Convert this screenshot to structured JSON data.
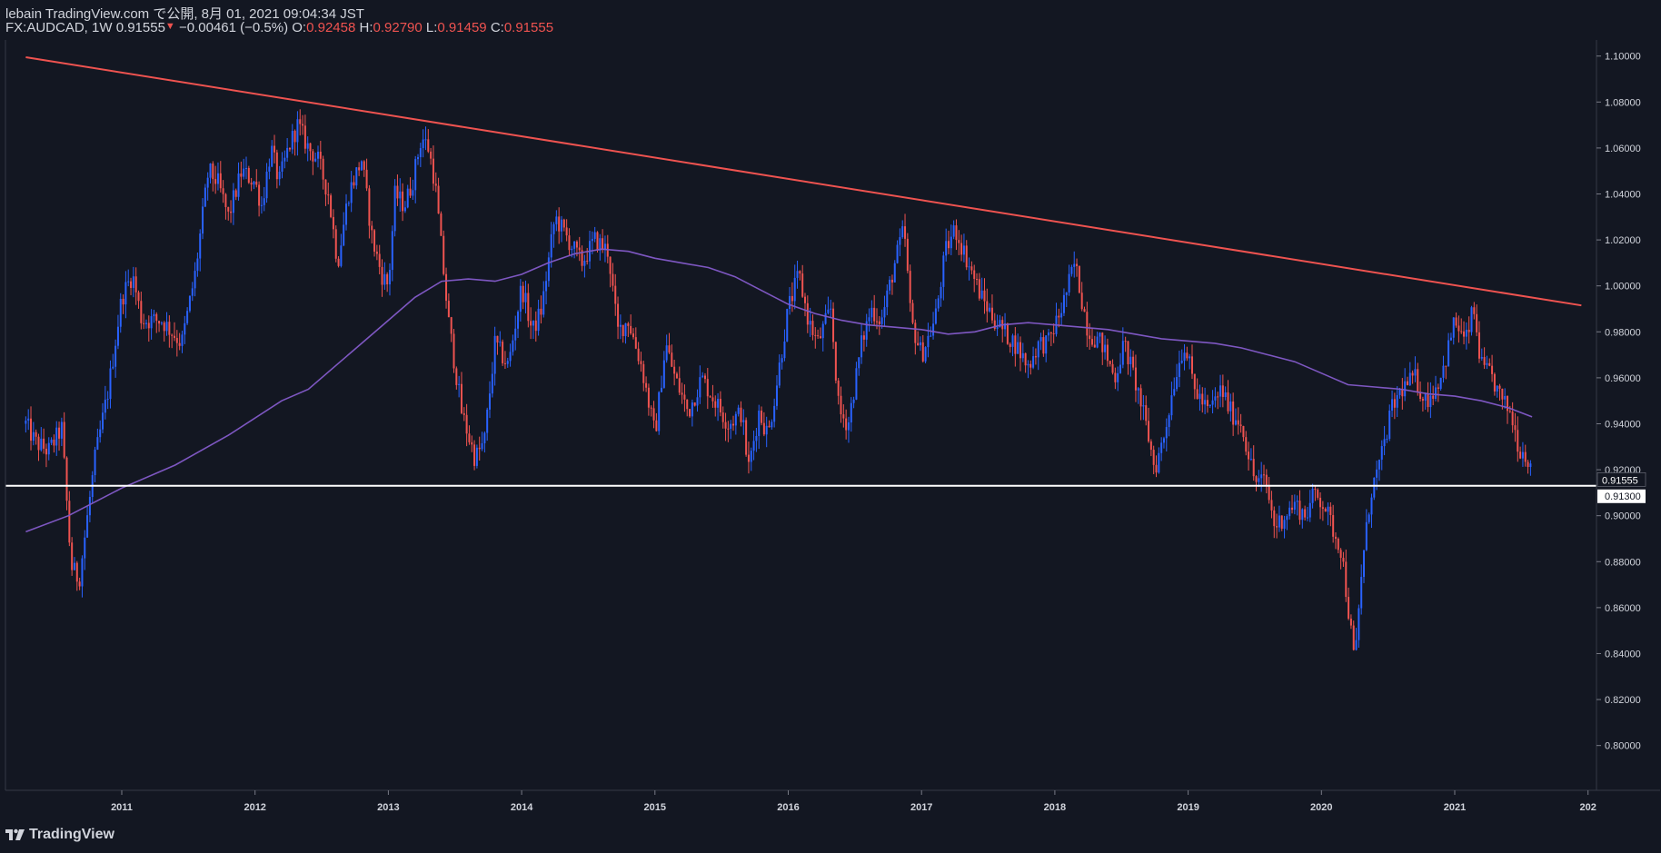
{
  "header": {
    "published_by": "lebain TradingView.com で公開, 8月 01, 2021 09:04:34 JST",
    "symbol": "FX:AUDCAD, 1W",
    "last": "0.91555",
    "change": "−0.00461 (−0.5%)",
    "o_label": "O:",
    "o_value": "0.92458",
    "h_label": "H:",
    "h_value": "0.92790",
    "l_label": "L:",
    "l_value": "0.91459",
    "c_label": "C:",
    "c_value": "0.91555"
  },
  "footer": {
    "logo_text": "TradingView"
  },
  "colors": {
    "background": "#131722",
    "up": "#2962ff",
    "down": "#ef5350",
    "ma": "#7e57c2",
    "trendline": "#ef5350",
    "support": "#ffffff"
  },
  "chart_data": {
    "type": "candlestick",
    "symbol": "FX:AUDCAD",
    "timeframe": "1W",
    "x_ticks": [
      "2011",
      "2012",
      "2013",
      "2014",
      "2015",
      "2016",
      "2017",
      "2018",
      "2019",
      "2020",
      "2021",
      "202"
    ],
    "y_ticks": [
      "1.10000",
      "1.08000",
      "1.06000",
      "1.04000",
      "1.02000",
      "1.00000",
      "0.98000",
      "0.96000",
      "0.94000",
      "0.92000",
      "0.90000",
      "0.88000",
      "0.86000",
      "0.84000",
      "0.82000",
      "0.80000"
    ],
    "ylim": [
      0.7805,
      1.107
    ],
    "price_labels": {
      "last": "0.91555",
      "support": "0.91300"
    },
    "support_level": 0.913,
    "trendline": [
      [
        2010.28,
        1.0995
      ],
      [
        2021.95,
        0.9915
      ]
    ],
    "price_path": [
      [
        2010.28,
        0.94
      ],
      [
        2010.35,
        0.932
      ],
      [
        2010.45,
        0.928
      ],
      [
        2010.55,
        0.938
      ],
      [
        2010.62,
        0.878
      ],
      [
        2010.68,
        0.872
      ],
      [
        2010.8,
        0.925
      ],
      [
        2010.9,
        0.955
      ],
      [
        2011.0,
        0.995
      ],
      [
        2011.08,
        1.005
      ],
      [
        2011.15,
        0.985
      ],
      [
        2011.3,
        0.985
      ],
      [
        2011.45,
        0.975
      ],
      [
        2011.55,
        1.005
      ],
      [
        2011.65,
        1.05
      ],
      [
        2011.72,
        1.045
      ],
      [
        2011.8,
        1.03
      ],
      [
        2011.9,
        1.05
      ],
      [
        2012.0,
        1.045
      ],
      [
        2012.05,
        1.035
      ],
      [
        2012.12,
        1.06
      ],
      [
        2012.18,
        1.045
      ],
      [
        2012.25,
        1.06
      ],
      [
        2012.32,
        1.07
      ],
      [
        2012.4,
        1.06
      ],
      [
        2012.47,
        1.055
      ],
      [
        2012.55,
        1.04
      ],
      [
        2012.62,
        1.01
      ],
      [
        2012.7,
        1.04
      ],
      [
        2012.8,
        1.055
      ],
      [
        2012.88,
        1.02
      ],
      [
        2012.95,
        1.005
      ],
      [
        2013.0,
        1.0
      ],
      [
        2013.05,
        1.04
      ],
      [
        2013.12,
        1.035
      ],
      [
        2013.18,
        1.045
      ],
      [
        2013.25,
        1.065
      ],
      [
        2013.3,
        1.06
      ],
      [
        2013.35,
        1.045
      ],
      [
        2013.45,
        0.985
      ],
      [
        2013.55,
        0.945
      ],
      [
        2013.65,
        0.925
      ],
      [
        2013.72,
        0.932
      ],
      [
        2013.8,
        0.975
      ],
      [
        2013.9,
        0.965
      ],
      [
        2014.0,
        1.0
      ],
      [
        2014.08,
        0.98
      ],
      [
        2014.15,
        0.99
      ],
      [
        2014.25,
        1.03
      ],
      [
        2014.35,
        1.02
      ],
      [
        2014.45,
        1.01
      ],
      [
        2014.55,
        1.02
      ],
      [
        2014.65,
        1.015
      ],
      [
        2014.72,
        0.98
      ],
      [
        2014.8,
        0.985
      ],
      [
        2014.9,
        0.965
      ],
      [
        2015.0,
        0.935
      ],
      [
        2015.08,
        0.975
      ],
      [
        2015.15,
        0.96
      ],
      [
        2015.25,
        0.945
      ],
      [
        2015.35,
        0.96
      ],
      [
        2015.45,
        0.95
      ],
      [
        2015.55,
        0.94
      ],
      [
        2015.65,
        0.945
      ],
      [
        2015.7,
        0.92
      ],
      [
        2015.78,
        0.945
      ],
      [
        2015.85,
        0.935
      ],
      [
        2015.92,
        0.96
      ],
      [
        2016.0,
        0.99
      ],
      [
        2016.08,
        1.005
      ],
      [
        2016.15,
        0.985
      ],
      [
        2016.22,
        0.975
      ],
      [
        2016.32,
        0.99
      ],
      [
        2016.38,
        0.945
      ],
      [
        2016.45,
        0.94
      ],
      [
        2016.55,
        0.975
      ],
      [
        2016.62,
        0.99
      ],
      [
        2016.7,
        0.985
      ],
      [
        2016.8,
        1.01
      ],
      [
        2016.87,
        1.025
      ],
      [
        2016.92,
        0.985
      ],
      [
        2017.0,
        0.97
      ],
      [
        2017.1,
        0.985
      ],
      [
        2017.18,
        1.015
      ],
      [
        2017.25,
        1.025
      ],
      [
        2017.35,
        1.01
      ],
      [
        2017.45,
        0.995
      ],
      [
        2017.55,
        0.985
      ],
      [
        2017.62,
        0.98
      ],
      [
        2017.7,
        0.975
      ],
      [
        2017.8,
        0.965
      ],
      [
        2017.88,
        0.975
      ],
      [
        2017.95,
        0.975
      ],
      [
        2018.05,
        0.99
      ],
      [
        2018.15,
        1.01
      ],
      [
        2018.25,
        0.98
      ],
      [
        2018.35,
        0.975
      ],
      [
        2018.45,
        0.96
      ],
      [
        2018.52,
        0.975
      ],
      [
        2018.62,
        0.955
      ],
      [
        2018.7,
        0.935
      ],
      [
        2018.75,
        0.92
      ],
      [
        2018.82,
        0.935
      ],
      [
        2018.9,
        0.96
      ],
      [
        2018.97,
        0.975
      ],
      [
        2019.05,
        0.955
      ],
      [
        2019.15,
        0.945
      ],
      [
        2019.25,
        0.955
      ],
      [
        2019.32,
        0.945
      ],
      [
        2019.4,
        0.94
      ],
      [
        2019.5,
        0.915
      ],
      [
        2019.58,
        0.915
      ],
      [
        2019.65,
        0.895
      ],
      [
        2019.72,
        0.9
      ],
      [
        2019.8,
        0.905
      ],
      [
        2019.88,
        0.9
      ],
      [
        2019.95,
        0.91
      ],
      [
        2020.02,
        0.905
      ],
      [
        2020.08,
        0.895
      ],
      [
        2020.15,
        0.885
      ],
      [
        2020.2,
        0.86
      ],
      [
        2020.25,
        0.835
      ],
      [
        2020.3,
        0.875
      ],
      [
        2020.37,
        0.91
      ],
      [
        2020.45,
        0.925
      ],
      [
        2020.52,
        0.945
      ],
      [
        2020.6,
        0.955
      ],
      [
        2020.7,
        0.96
      ],
      [
        2020.78,
        0.95
      ],
      [
        2020.85,
        0.955
      ],
      [
        2020.92,
        0.965
      ],
      [
        2021.0,
        0.985
      ],
      [
        2021.08,
        0.975
      ],
      [
        2021.14,
        0.99
      ],
      [
        2021.2,
        0.965
      ],
      [
        2021.28,
        0.96
      ],
      [
        2021.35,
        0.95
      ],
      [
        2021.42,
        0.945
      ],
      [
        2021.48,
        0.93
      ],
      [
        2021.55,
        0.925
      ],
      [
        2021.58,
        0.9156
      ]
    ],
    "moving_average": [
      [
        2010.28,
        0.893
      ],
      [
        2010.6,
        0.9
      ],
      [
        2011.0,
        0.912
      ],
      [
        2011.4,
        0.922
      ],
      [
        2011.8,
        0.935
      ],
      [
        2012.2,
        0.95
      ],
      [
        2012.4,
        0.955
      ],
      [
        2012.6,
        0.965
      ],
      [
        2012.8,
        0.975
      ],
      [
        2013.0,
        0.985
      ],
      [
        2013.2,
        0.995
      ],
      [
        2013.4,
        1.002
      ],
      [
        2013.6,
        1.003
      ],
      [
        2013.8,
        1.002
      ],
      [
        2014.0,
        1.005
      ],
      [
        2014.2,
        1.01
      ],
      [
        2014.4,
        1.014
      ],
      [
        2014.6,
        1.016
      ],
      [
        2014.8,
        1.015
      ],
      [
        2015.0,
        1.012
      ],
      [
        2015.2,
        1.01
      ],
      [
        2015.4,
        1.008
      ],
      [
        2015.6,
        1.004
      ],
      [
        2015.8,
        0.998
      ],
      [
        2016.0,
        0.992
      ],
      [
        2016.2,
        0.988
      ],
      [
        2016.4,
        0.985
      ],
      [
        2016.6,
        0.983
      ],
      [
        2016.8,
        0.982
      ],
      [
        2017.0,
        0.981
      ],
      [
        2017.2,
        0.979
      ],
      [
        2017.4,
        0.98
      ],
      [
        2017.6,
        0.983
      ],
      [
        2017.8,
        0.984
      ],
      [
        2018.0,
        0.983
      ],
      [
        2018.2,
        0.982
      ],
      [
        2018.4,
        0.981
      ],
      [
        2018.6,
        0.979
      ],
      [
        2018.8,
        0.977
      ],
      [
        2019.0,
        0.976
      ],
      [
        2019.2,
        0.975
      ],
      [
        2019.4,
        0.973
      ],
      [
        2019.6,
        0.97
      ],
      [
        2019.8,
        0.967
      ],
      [
        2020.0,
        0.962
      ],
      [
        2020.2,
        0.957
      ],
      [
        2020.4,
        0.956
      ],
      [
        2020.6,
        0.955
      ],
      [
        2020.8,
        0.953
      ],
      [
        2021.0,
        0.952
      ],
      [
        2021.2,
        0.95
      ],
      [
        2021.4,
        0.947
      ],
      [
        2021.58,
        0.943
      ]
    ]
  }
}
